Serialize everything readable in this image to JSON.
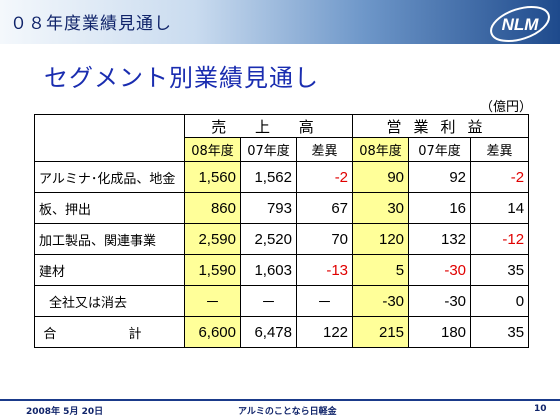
{
  "header": {
    "title": "０８年度業績見通し",
    "logo_text": "NLM"
  },
  "slide_title": "セグメント別業績見通し",
  "unit": "（億円）",
  "table": {
    "group_headers": [
      "売 上 高",
      "営業利益"
    ],
    "sub_headers": [
      "08年度",
      "07年度",
      "差異",
      "08年度",
      "07年度",
      "差異"
    ],
    "rows": [
      {
        "label": "アルミナ･化成品、地金",
        "values": [
          "1,560",
          "1,562",
          "-2",
          "90",
          "92",
          "-2"
        ]
      },
      {
        "label": "板、押出",
        "values": [
          "860",
          "793",
          "67",
          "30",
          "16",
          "14"
        ]
      },
      {
        "label": "加工製品、関連事業",
        "values": [
          "2,590",
          "2,520",
          "70",
          "120",
          "132",
          "-12"
        ]
      },
      {
        "label": "建材",
        "values": [
          "1,590",
          "1,603",
          "-13",
          "5",
          "-30",
          "35"
        ]
      },
      {
        "label": "全社又は消去",
        "values": [
          "－",
          "－",
          "－",
          "-30",
          "-30",
          "0"
        ]
      },
      {
        "label": "合 計",
        "values": [
          "6,600",
          "6,478",
          "122",
          "215",
          "180",
          "35"
        ]
      }
    ]
  },
  "footer": {
    "date": "2008年 5月 20日",
    "tagline": "アルミのことなら日軽金",
    "page": "10"
  },
  "colors": {
    "highlight": "#ffff99",
    "negative": "#e00000",
    "title": "#1a2db0",
    "header_gradient_end": "#1e4a8c"
  }
}
